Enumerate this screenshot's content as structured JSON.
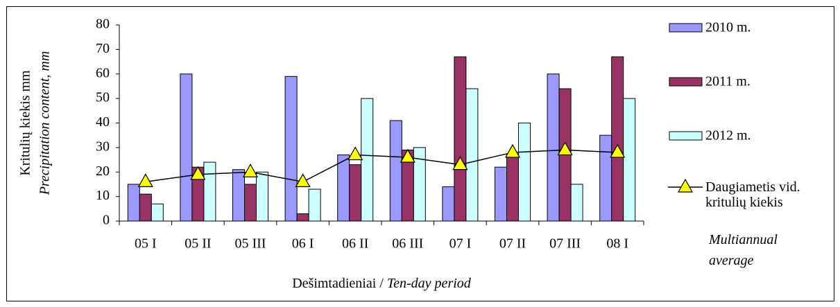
{
  "chart_data": {
    "type": "bar",
    "y_label": [
      "Kritulių kiekis mm",
      "Precipitation content, mm"
    ],
    "x_label": [
      "Dešimtadieniai /",
      "Ten-day period"
    ],
    "categories": [
      "05 I",
      "05 II",
      "05 III",
      "06 I",
      "06 II",
      "06 III",
      "07 I",
      "07 II",
      "07 III",
      "08 I"
    ],
    "series": [
      {
        "name": "2010 m.",
        "color": "#9999ff",
        "values": [
          15,
          60,
          21,
          59,
          27,
          41,
          14,
          22,
          60,
          35
        ]
      },
      {
        "name": "2011 m.",
        "color": "#993366",
        "values": [
          11,
          22,
          15,
          3,
          23,
          29,
          67,
          27,
          54,
          67
        ]
      },
      {
        "name": "2012 m.",
        "color": "#ccffff",
        "values": [
          7,
          24,
          20,
          13,
          50,
          30,
          54,
          40,
          15,
          50
        ]
      },
      {
        "name": "Daugiametis vid. kritulių kiekis",
        "name_en": "Multiannual average",
        "type": "line",
        "color": "#000000",
        "marker_color": "#ffff00",
        "values": [
          16,
          19,
          20,
          16,
          27,
          26,
          23,
          28,
          29,
          28
        ]
      }
    ],
    "ylim": [
      0,
      80
    ],
    "yticks": [
      0,
      10,
      20,
      30,
      40,
      50,
      60,
      70,
      80
    ],
    "legend": "right"
  }
}
